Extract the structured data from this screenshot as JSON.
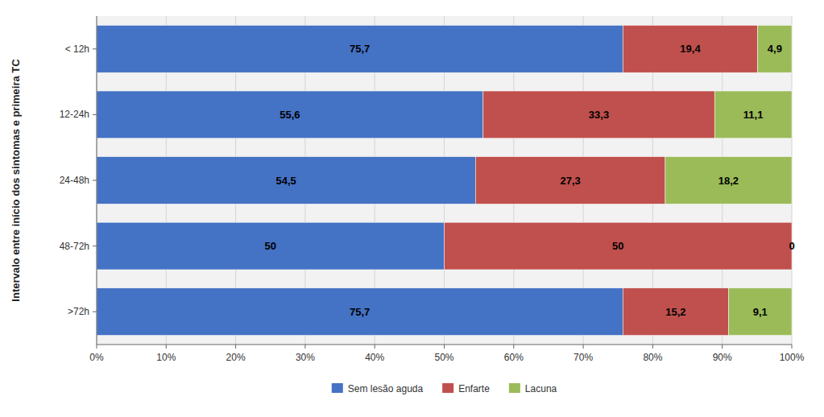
{
  "chart_data": {
    "type": "bar",
    "orientation": "horizontal",
    "stacked": true,
    "ylabel": "Intervalo entre início dos sintomas e primeira TC",
    "categories": [
      "< 12h",
      "12-24h",
      "24-48h",
      "48-72h",
      ">72h"
    ],
    "series": [
      {
        "name": "Sem lesão aguda",
        "color": "#4472C4",
        "values": [
          75.7,
          55.6,
          54.5,
          50.0,
          75.7
        ],
        "value_labels": [
          "75,7",
          "55,6",
          "54,5",
          "50",
          "75,7"
        ]
      },
      {
        "name": "Enfarte",
        "color": "#C0504D",
        "values": [
          19.4,
          33.3,
          27.3,
          50.0,
          15.2
        ],
        "value_labels": [
          "19,4",
          "33,3",
          "27,3",
          "50",
          "15,2"
        ]
      },
      {
        "name": "Lacuna",
        "color": "#9BBB59",
        "values": [
          4.9,
          11.1,
          18.2,
          0.0,
          9.1
        ],
        "value_labels": [
          "4,9",
          "11,1",
          "18,2",
          "0",
          "9,1"
        ]
      }
    ],
    "xlim": [
      0,
      100
    ],
    "xticks": [
      {
        "value": 0,
        "label": "0%"
      },
      {
        "value": 10,
        "label": "10%"
      },
      {
        "value": 20,
        "label": "20%"
      },
      {
        "value": 30,
        "label": "30%"
      },
      {
        "value": 40,
        "label": "40%"
      },
      {
        "value": 50,
        "label": "50%"
      },
      {
        "value": 60,
        "label": "60%"
      },
      {
        "value": 70,
        "label": "70%"
      },
      {
        "value": 80,
        "label": "80%"
      },
      {
        "value": 90,
        "label": "90%"
      },
      {
        "value": 100,
        "label": "100%"
      }
    ],
    "grid": true,
    "data_labels": true,
    "legend": "bottom"
  }
}
